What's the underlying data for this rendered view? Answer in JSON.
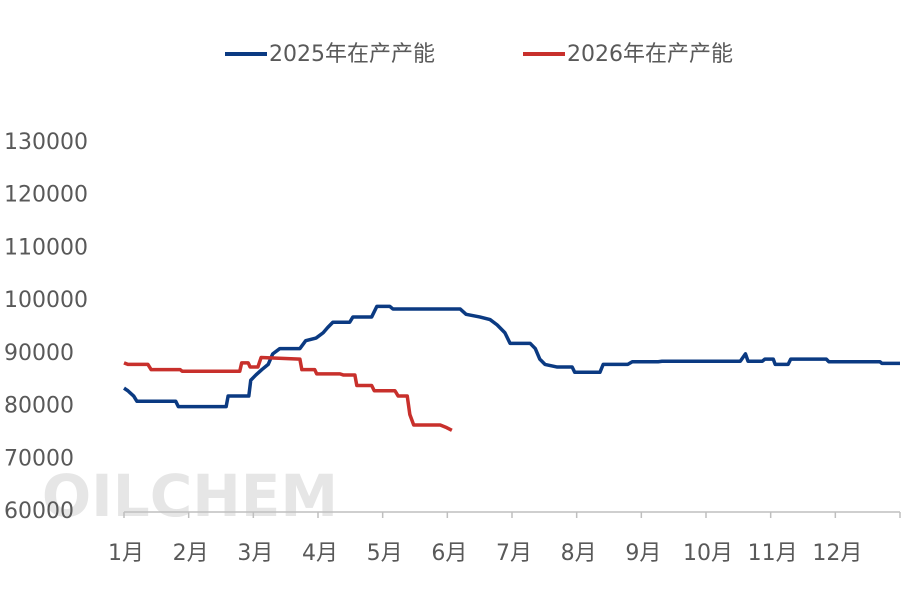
{
  "chart_data": {
    "type": "line",
    "watermark": "OILCHEM",
    "xlim": [
      1,
      13
    ],
    "xticks": [
      {
        "value": 1,
        "label": "1月"
      },
      {
        "value": 2,
        "label": "2月"
      },
      {
        "value": 3,
        "label": "3月"
      },
      {
        "value": 4,
        "label": "4月"
      },
      {
        "value": 5,
        "label": "5月"
      },
      {
        "value": 6,
        "label": "6月"
      },
      {
        "value": 7,
        "label": "7月"
      },
      {
        "value": 8,
        "label": "8月"
      },
      {
        "value": 9,
        "label": "9月"
      },
      {
        "value": 10,
        "label": "10月"
      },
      {
        "value": 11,
        "label": "11月"
      },
      {
        "value": 12,
        "label": "12月"
      },
      {
        "value": 13,
        "label": ""
      }
    ],
    "ylim": [
      60000,
      130000
    ],
    "yticks": [
      60000,
      70000,
      80000,
      90000,
      100000,
      110000,
      120000,
      130000
    ],
    "grid": false,
    "legend": "top",
    "series": [
      {
        "name": "2025年在产产能",
        "color": "#0b3a82",
        "x": [
          1.0,
          1.06,
          1.15,
          1.2,
          1.8,
          1.84,
          2.58,
          2.61,
          2.93,
          2.96,
          3.04,
          3.13,
          3.23,
          3.3,
          3.41,
          3.72,
          3.81,
          3.97,
          4.08,
          4.15,
          4.23,
          4.49,
          4.54,
          4.83,
          4.91,
          5.11,
          5.16,
          6.2,
          6.29,
          6.5,
          6.66,
          6.77,
          6.89,
          6.97,
          7.28,
          7.36,
          7.43,
          7.51,
          7.7,
          7.93,
          7.97,
          8.36,
          8.41,
          8.79,
          8.86,
          9.26,
          9.32,
          10.53,
          10.61,
          10.65,
          10.87,
          10.91,
          11.04,
          11.07,
          11.27,
          11.31,
          11.86,
          11.9,
          12.69,
          12.72,
          13.0
        ],
        "values": [
          83500,
          83000,
          82000,
          81000,
          81000,
          80000,
          80000,
          82000,
          82000,
          85000,
          86000,
          87000,
          88000,
          90000,
          91000,
          91000,
          92500,
          93000,
          94000,
          95000,
          96000,
          96000,
          97000,
          97000,
          99000,
          99000,
          98500,
          98500,
          97500,
          97000,
          96500,
          95500,
          94000,
          92000,
          92000,
          91000,
          89000,
          88000,
          87500,
          87500,
          86500,
          86500,
          88000,
          88000,
          88500,
          88500,
          88600,
          88600,
          90000,
          88600,
          88600,
          89000,
          89000,
          88000,
          88000,
          89000,
          89000,
          88500,
          88500,
          88200,
          88200
        ]
      },
      {
        "name": "2026年在产产能",
        "color": "#c8302c",
        "x": [
          1.0,
          1.06,
          1.37,
          1.42,
          1.87,
          1.9,
          2.79,
          2.82,
          2.92,
          2.95,
          3.07,
          3.12,
          3.72,
          3.75,
          3.95,
          3.98,
          4.34,
          4.39,
          4.57,
          4.6,
          4.83,
          4.87,
          5.19,
          5.24,
          5.38,
          5.42,
          5.48,
          5.89,
          5.99,
          6.07
        ],
        "values": [
          88300,
          88000,
          88000,
          87000,
          87000,
          86700,
          86700,
          88300,
          88300,
          87500,
          87500,
          89300,
          89000,
          87000,
          87000,
          86200,
          86200,
          86000,
          86000,
          84000,
          84000,
          83000,
          83000,
          82000,
          82000,
          78500,
          76500,
          76500,
          76000,
          75500
        ]
      }
    ]
  }
}
